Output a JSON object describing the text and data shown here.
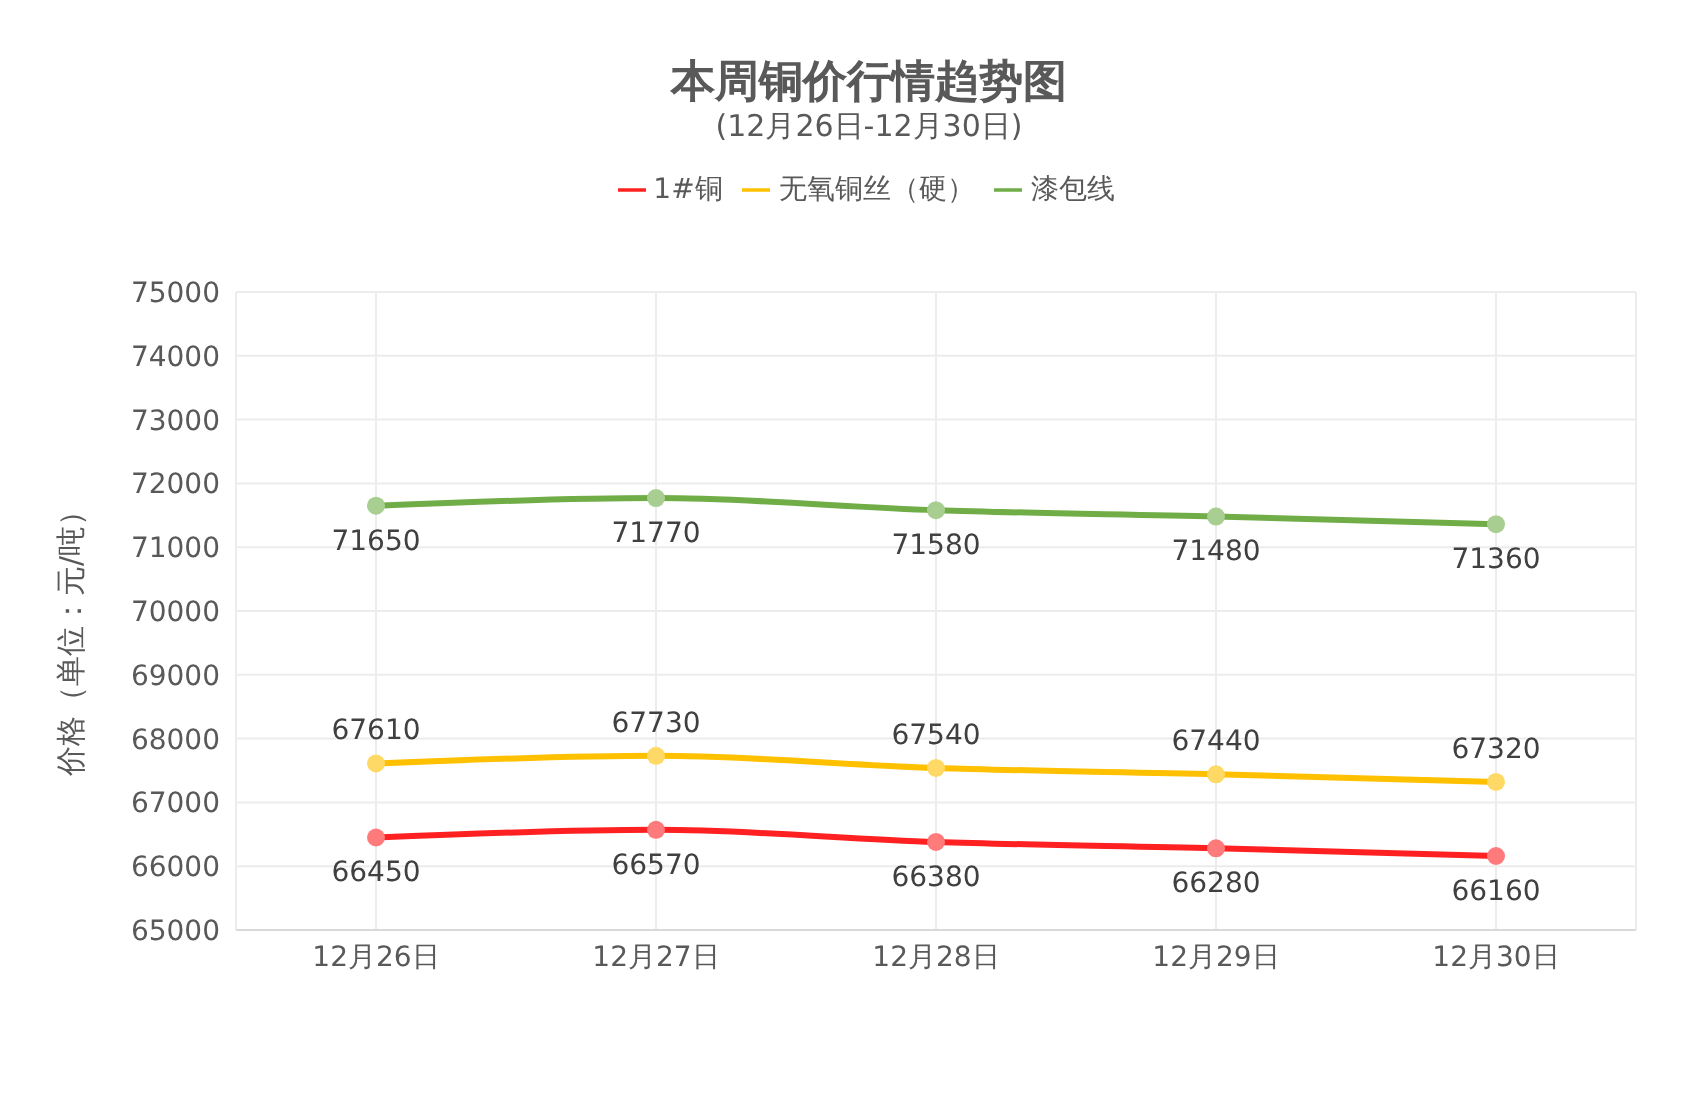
{
  "chart_data": {
    "type": "line",
    "title": "本周铜价行情趋势图",
    "subtitle": "(12月26日-12月30日)",
    "ylabel": "价格（单位：元/吨）",
    "categories": [
      "12月26日",
      "12月27日",
      "12月28日",
      "12月29日",
      "12月30日"
    ],
    "series": [
      {
        "name": "1#铜",
        "color": "#ff2121",
        "values": [
          66450,
          66570,
          66380,
          66280,
          66160
        ]
      },
      {
        "name": "无氧铜丝（硬）",
        "color": "#ffc000",
        "values": [
          67610,
          67730,
          67540,
          67440,
          67320
        ]
      },
      {
        "name": "漆包线",
        "color": "#70ad47",
        "values": [
          71650,
          71770,
          71580,
          71480,
          71360
        ]
      }
    ],
    "ylim": [
      65000,
      75000
    ],
    "yticks": [
      65000,
      66000,
      67000,
      68000,
      69000,
      70000,
      71000,
      72000,
      73000,
      74000,
      75000
    ],
    "grid": true,
    "legend": "top",
    "marker": "circle",
    "data_labels": true
  }
}
